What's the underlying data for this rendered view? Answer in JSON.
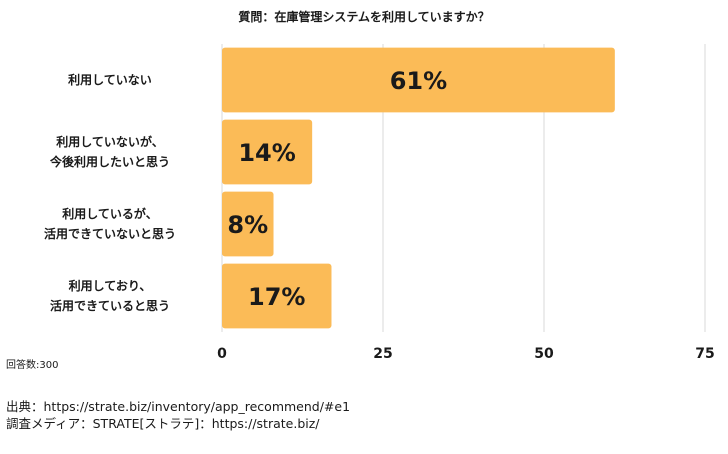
{
  "chart_data": {
    "type": "bar",
    "orientation": "horizontal",
    "title": "質問：在庫管理システムを利用していますか？",
    "categories": [
      "利用していない",
      "利用していないが、\n今後利用したいと思う",
      "利用しているが、\n活用できていないと思う",
      "利用しており、\n活用できていると思う"
    ],
    "values": [
      61,
      14,
      8,
      17
    ],
    "value_labels": [
      "61%",
      "14%",
      "8%",
      "17%"
    ],
    "xlim": [
      0,
      75
    ],
    "xticks": [
      0,
      25,
      50,
      75
    ],
    "grid": true,
    "legend": "none",
    "bar_color": "#FBBB57"
  },
  "footer": {
    "sample_size": "回答数:300",
    "source_line": "出典：https://strate.biz/inventory/app_recommend/#e1",
    "survey_media_line": "調査メディア：STRATE[ストラテ]：https://strate.biz/"
  }
}
